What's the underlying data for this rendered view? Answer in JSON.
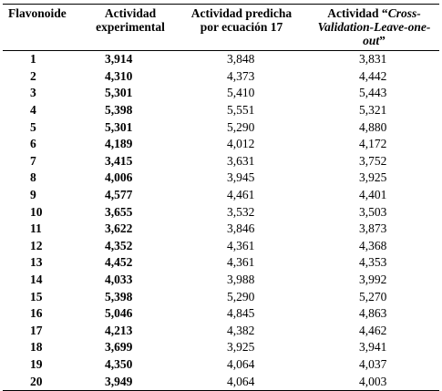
{
  "table": {
    "headers": {
      "col1": "Flavonoide",
      "col2_line1": "Actividad",
      "col2_line2": "experimental",
      "col3_line1": "Actividad predicha",
      "col3_line2": "por ecuación 17",
      "col4_line1_prefix": "Actividad “",
      "col4_line1_italic": "Cross-",
      "col4_line2_italic": "Validation-Leave-one-out",
      "col4_line2_suffix": "”"
    },
    "rows": [
      {
        "flavonoide": "1",
        "experimental": "3,914",
        "predicha": "3,848",
        "cv": "3,831"
      },
      {
        "flavonoide": "2",
        "experimental": "4,310",
        "predicha": "4,373",
        "cv": "4,442"
      },
      {
        "flavonoide": "3",
        "experimental": "5,301",
        "predicha": "5,410",
        "cv": "5,443"
      },
      {
        "flavonoide": "4",
        "experimental": "5,398",
        "predicha": "5,551",
        "cv": "5,321"
      },
      {
        "flavonoide": "5",
        "experimental": "5,301",
        "predicha": "5,290",
        "cv": "4,880"
      },
      {
        "flavonoide": "6",
        "experimental": "4,189",
        "predicha": "4,012",
        "cv": "4,172"
      },
      {
        "flavonoide": "7",
        "experimental": "3,415",
        "predicha": "3,631",
        "cv": "3,752"
      },
      {
        "flavonoide": "8",
        "experimental": "4,006",
        "predicha": "3,945",
        "cv": "3,925"
      },
      {
        "flavonoide": "9",
        "experimental": "4,577",
        "predicha": "4,461",
        "cv": "4,401"
      },
      {
        "flavonoide": "10",
        "experimental": "3,655",
        "predicha": "3,532",
        "cv": "3,503"
      },
      {
        "flavonoide": "11",
        "experimental": "3,622",
        "predicha": "3,846",
        "cv": "3,873"
      },
      {
        "flavonoide": "12",
        "experimental": "4,352",
        "predicha": "4,361",
        "cv": "4,368"
      },
      {
        "flavonoide": "13",
        "experimental": "4,452",
        "predicha": "4,361",
        "cv": "4,353"
      },
      {
        "flavonoide": "14",
        "experimental": "4,033",
        "predicha": "3,988",
        "cv": "3,992"
      },
      {
        "flavonoide": "15",
        "experimental": "5,398",
        "predicha": "5,290",
        "cv": "5,270"
      },
      {
        "flavonoide": "16",
        "experimental": "5,046",
        "predicha": "4,845",
        "cv": "4,863"
      },
      {
        "flavonoide": "17",
        "experimental": "4,213",
        "predicha": "4,382",
        "cv": "4,462"
      },
      {
        "flavonoide": "18",
        "experimental": "3,699",
        "predicha": "3,925",
        "cv": "3,941"
      },
      {
        "flavonoide": "19",
        "experimental": "4,350",
        "predicha": "4,064",
        "cv": "4,037"
      },
      {
        "flavonoide": "20",
        "experimental": "3,949",
        "predicha": "4,064",
        "cv": "4,003"
      }
    ]
  }
}
